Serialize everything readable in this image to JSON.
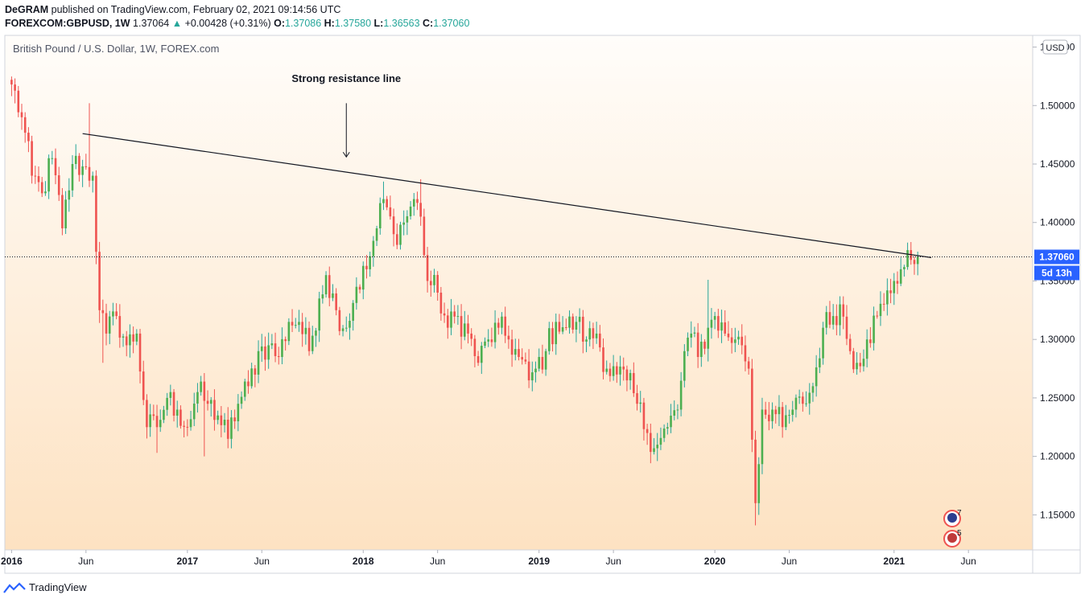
{
  "header": {
    "author": "DeGRAM",
    "published": "published on TradingView.com, February 02, 2021 09:14:56 UTC",
    "symbol": "FOREXCOM:GBPUSD, 1W",
    "last": "1.37064",
    "change": "+0.00428 (+0.31%)",
    "o_label": "O:",
    "o": "1.37086",
    "h_label": "H:",
    "h": "1.37580",
    "l_label": "L:",
    "l": "1.36563",
    "c_label": "C:",
    "c": "1.37060"
  },
  "footer": {
    "brand": "TradingView"
  },
  "colors": {
    "up": "#26a69a",
    "upBody": "#4caf50",
    "down": "#ef5350",
    "bgTop": "#fffdfa",
    "bgBottom": "#fde2c2",
    "price_tag": "#2962ff",
    "up_text": "#26a69a"
  },
  "chart_data": {
    "type": "candlestick",
    "title": "British Pound / U.S. Dollar, 1W, FOREX.com",
    "currency": "USD",
    "ylim": [
      1.12,
      1.56
    ],
    "y_ticks": [
      "1.15000",
      "1.20000",
      "1.25000",
      "1.30000",
      "1.35000",
      "1.40000",
      "1.45000",
      "1.50000",
      "1.55000"
    ],
    "x_ticks": [
      {
        "label": "2016",
        "t": 0
      },
      {
        "label": "Jun",
        "t": 22
      },
      {
        "label": "2017",
        "t": 52
      },
      {
        "label": "Jun",
        "t": 74
      },
      {
        "label": "2018",
        "t": 104
      },
      {
        "label": "Jun",
        "t": 126
      },
      {
        "label": "2019",
        "t": 156
      },
      {
        "label": "Jun",
        "t": 178
      },
      {
        "label": "2020",
        "t": 208
      },
      {
        "label": "Jun",
        "t": 230
      },
      {
        "label": "2021",
        "t": 261
      },
      {
        "label": "Jun",
        "t": 283
      }
    ],
    "t_range": [
      -2,
      302
    ],
    "anchors": [
      [
        0,
        1.518
      ],
      [
        3,
        1.49
      ],
      [
        6,
        1.44
      ],
      [
        9,
        1.425
      ],
      [
        12,
        1.455
      ],
      [
        15,
        1.395
      ],
      [
        18,
        1.45
      ],
      [
        21,
        1.448
      ],
      [
        24,
        1.44
      ],
      [
        26,
        1.325
      ],
      [
        28,
        1.305
      ],
      [
        31,
        1.32
      ],
      [
        34,
        1.295
      ],
      [
        37,
        1.305
      ],
      [
        40,
        1.225
      ],
      [
        43,
        1.225
      ],
      [
        46,
        1.25
      ],
      [
        49,
        1.24
      ],
      [
        52,
        1.225
      ],
      [
        55,
        1.255
      ],
      [
        58,
        1.245
      ],
      [
        61,
        1.235
      ],
      [
        64,
        1.215
      ],
      [
        67,
        1.245
      ],
      [
        70,
        1.26
      ],
      [
        73,
        1.29
      ],
      [
        76,
        1.295
      ],
      [
        79,
        1.285
      ],
      [
        82,
        1.315
      ],
      [
        85,
        1.315
      ],
      [
        88,
        1.29
      ],
      [
        91,
        1.335
      ],
      [
        93,
        1.355
      ],
      [
        96,
        1.325
      ],
      [
        99,
        1.31
      ],
      [
        102,
        1.345
      ],
      [
        105,
        1.36
      ],
      [
        108,
        1.395
      ],
      [
        110,
        1.42
      ],
      [
        113,
        1.39
      ],
      [
        116,
        1.4
      ],
      [
        119,
        1.42
      ],
      [
        121,
        1.405
      ],
      [
        123,
        1.35
      ],
      [
        126,
        1.34
      ],
      [
        129,
        1.31
      ],
      [
        132,
        1.32
      ],
      [
        135,
        1.305
      ],
      [
        138,
        1.28
      ],
      [
        141,
        1.3
      ],
      [
        144,
        1.31
      ],
      [
        147,
        1.3
      ],
      [
        150,
        1.285
      ],
      [
        153,
        1.265
      ],
      [
        155,
        1.275
      ],
      [
        158,
        1.29
      ],
      [
        161,
        1.315
      ],
      [
        164,
        1.31
      ],
      [
        167,
        1.315
      ],
      [
        170,
        1.3
      ],
      [
        173,
        1.305
      ],
      [
        176,
        1.275
      ],
      [
        179,
        1.27
      ],
      [
        182,
        1.265
      ],
      [
        185,
        1.245
      ],
      [
        188,
        1.22
      ],
      [
        191,
        1.21
      ],
      [
        194,
        1.225
      ],
      [
        197,
        1.24
      ],
      [
        199,
        1.29
      ],
      [
        201,
        1.305
      ],
      [
        203,
        1.285
      ],
      [
        206,
        1.31
      ],
      [
        208,
        1.32
      ],
      [
        211,
        1.305
      ],
      [
        214,
        1.3
      ],
      [
        216,
        1.295
      ],
      [
        218,
        1.275
      ],
      [
        220,
        1.16
      ],
      [
        222,
        1.24
      ],
      [
        225,
        1.24
      ],
      [
        228,
        1.225
      ],
      [
        231,
        1.24
      ],
      [
        234,
        1.245
      ],
      [
        237,
        1.26
      ],
      [
        240,
        1.31
      ],
      [
        243,
        1.32
      ],
      [
        245,
        1.33
      ],
      [
        248,
        1.29
      ],
      [
        250,
        1.28
      ],
      [
        253,
        1.3
      ],
      [
        256,
        1.32
      ],
      [
        258,
        1.33
      ],
      [
        261,
        1.35
      ],
      [
        263,
        1.36
      ],
      [
        266,
        1.368
      ],
      [
        268,
        1.3706
      ]
    ],
    "swings": [
      {
        "t": 23,
        "high": 1.502
      },
      {
        "t": 27,
        "low": 1.28
      },
      {
        "t": 43,
        "low": 1.203
      },
      {
        "t": 57,
        "low": 1.2
      },
      {
        "t": 110,
        "high": 1.435
      },
      {
        "t": 121,
        "high": 1.437
      },
      {
        "t": 191,
        "low": 1.196
      },
      {
        "t": 206,
        "high": 1.351
      },
      {
        "t": 220,
        "low": 1.141
      }
    ],
    "resistance_line": {
      "from": [
        21,
        1.476
      ],
      "to": [
        272,
        1.37
      ]
    },
    "annotation": {
      "text": "Strong resistance line",
      "t": 99,
      "y": 1.52
    },
    "arrow": {
      "t": 99,
      "from_y": 1.502,
      "to_y": 1.456
    },
    "last_price": {
      "value": "1.37060",
      "y": 1.3706,
      "countdown": "5d 13h"
    },
    "events": [
      {
        "count": "7"
      },
      {
        "count": "5"
      }
    ]
  }
}
